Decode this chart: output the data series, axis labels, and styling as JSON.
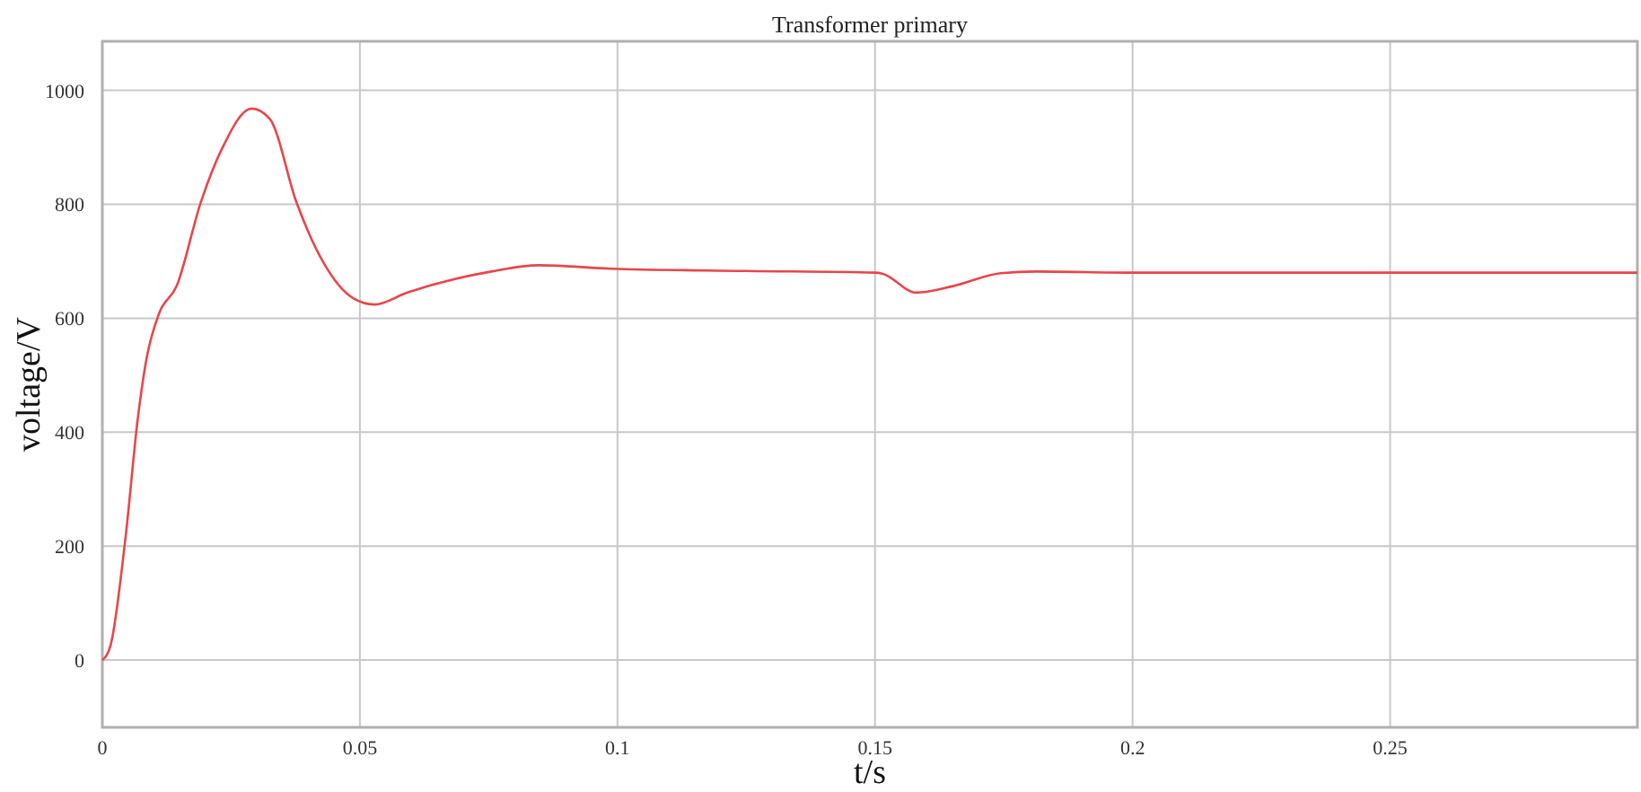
{
  "chart_data": {
    "type": "line",
    "title": "Transformer primary",
    "xlabel": "t/s",
    "ylabel": "voltage/V",
    "xlim": [
      0,
      0.298
    ],
    "ylim": [
      -118,
      1086
    ],
    "xticks": [
      0,
      0.05,
      0.1,
      0.15,
      0.2,
      0.25
    ],
    "yticks": [
      0,
      200,
      400,
      600,
      800,
      1000
    ],
    "grid": true,
    "series": [
      {
        "color": "#e8464a",
        "x": [
          0,
          0.0016,
          0.0045,
          0.0069,
          0.0086,
          0.011,
          0.0144,
          0.0191,
          0.0232,
          0.029,
          0.0325,
          0.0377,
          0.0429,
          0.0487,
          0.0528,
          0.0592,
          0.0755,
          0.0848,
          0.0987,
          0.125,
          0.15,
          0.1515,
          0.158,
          0.165,
          0.1744,
          0.1813,
          0.2,
          0.25,
          0.298
        ],
        "values": [
          0,
          26,
          215,
          425,
          530,
          608,
          656,
          803,
          897,
          968,
          950,
          803,
          698,
          635,
          624,
          645,
          682,
          693,
          687,
          683,
          680,
          678,
          645,
          656,
          679,
          682,
          680,
          680,
          680
        ]
      }
    ]
  }
}
